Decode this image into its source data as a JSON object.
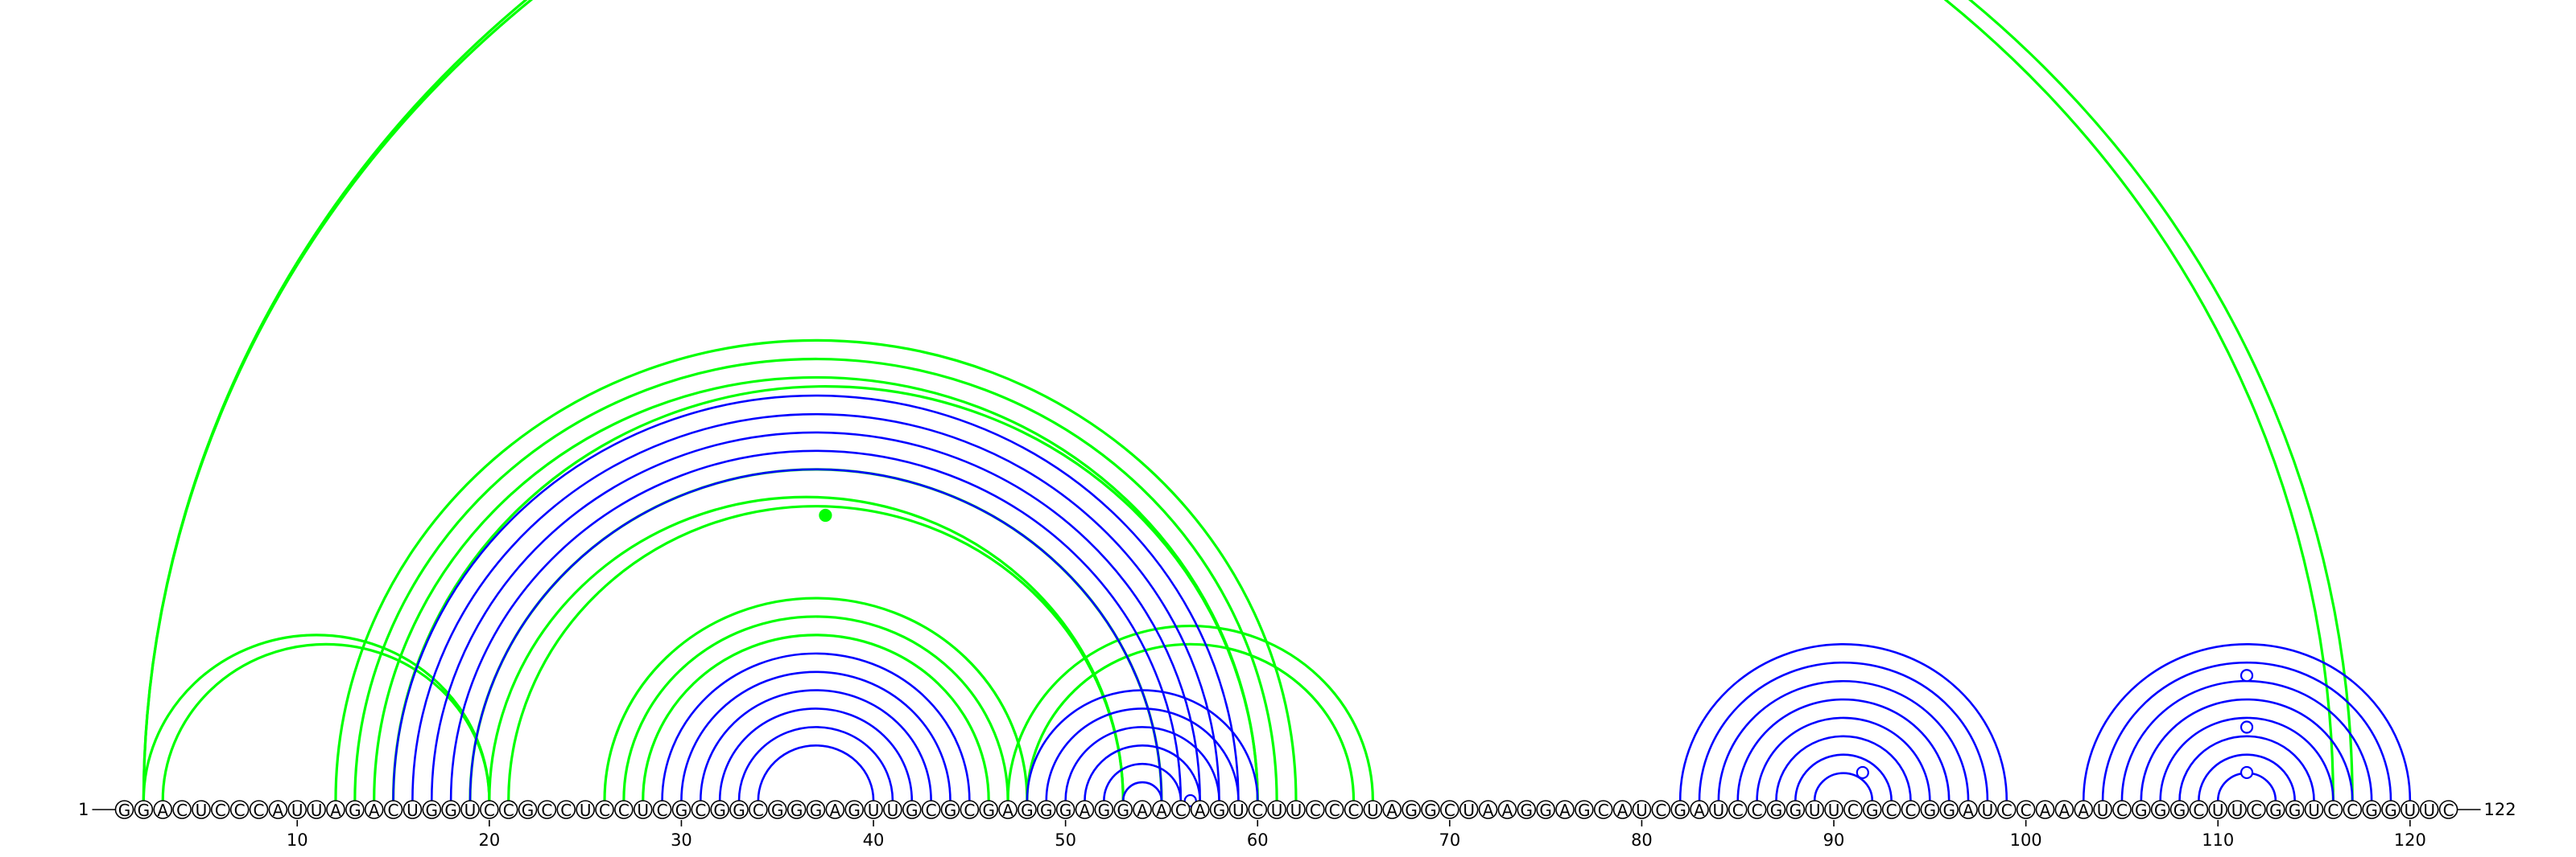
{
  "sequence": "GGACUCCCAUUAGACUGGUCCGCCUCCUCGCGGCGGGAGUUGCGCGAGGGAGGAACAGUCUUCCCUAGGCUAAGGAGCAUCGAUCCGGUUCGCCGGAUCCAAAUCGGGCUUCGGUCCGGUUC",
  "start_label": "1",
  "end_label": "122",
  "ticks": [
    10,
    20,
    30,
    40,
    50,
    60,
    70,
    80,
    90,
    100,
    110,
    120
  ],
  "colors": {
    "reference": "#0000ff",
    "prediction": "#00ff00",
    "backbone": "#000000"
  },
  "arc_sets": {
    "prediction": [
      [
        2,
        116
      ],
      [
        2,
        117
      ],
      [
        2,
        20
      ],
      [
        3,
        20
      ],
      [
        12,
        62
      ],
      [
        13,
        61
      ],
      [
        14,
        60
      ],
      [
        15,
        60
      ],
      [
        19,
        55
      ],
      [
        20,
        53
      ],
      [
        21,
        53
      ],
      [
        26,
        48
      ],
      [
        27,
        47
      ],
      [
        28,
        46
      ],
      [
        47,
        66
      ],
      [
        48,
        65
      ]
    ],
    "reference": [
      [
        15,
        59
      ],
      [
        16,
        58
      ],
      [
        17,
        57
      ],
      [
        18,
        56
      ],
      [
        19,
        55
      ],
      [
        29,
        45
      ],
      [
        30,
        44
      ],
      [
        31,
        43
      ],
      [
        32,
        42
      ],
      [
        33,
        41
      ],
      [
        34,
        40
      ],
      [
        48,
        60
      ],
      [
        49,
        59
      ],
      [
        50,
        58
      ],
      [
        51,
        57
      ],
      [
        52,
        56
      ],
      [
        53,
        55
      ],
      [
        82,
        99
      ],
      [
        83,
        98
      ],
      [
        84,
        97
      ],
      [
        85,
        96
      ],
      [
        86,
        95
      ],
      [
        87,
        94
      ],
      [
        88,
        93
      ],
      [
        89,
        92
      ],
      [
        103,
        120
      ],
      [
        104,
        119
      ],
      [
        105,
        118
      ],
      [
        106,
        117
      ],
      [
        107,
        116
      ],
      [
        108,
        115
      ],
      [
        109,
        114
      ],
      [
        110,
        113
      ]
    ]
  },
  "markers": [
    {
      "series": "prediction",
      "pos": 37.5,
      "height": 0.62,
      "filled": true
    },
    {
      "series": "reference",
      "pos": 56.5,
      "height": 0.45,
      "filled": false
    },
    {
      "series": "reference",
      "pos": 91.5,
      "height": 0.18,
      "filled": false
    },
    {
      "series": "reference",
      "pos": 111.5,
      "height": 0.8,
      "filled": false
    },
    {
      "series": "reference",
      "pos": 111.5,
      "height": 0.47,
      "filled": false
    },
    {
      "series": "reference",
      "pos": 111.5,
      "height": 0.18,
      "filled": false
    }
  ]
}
